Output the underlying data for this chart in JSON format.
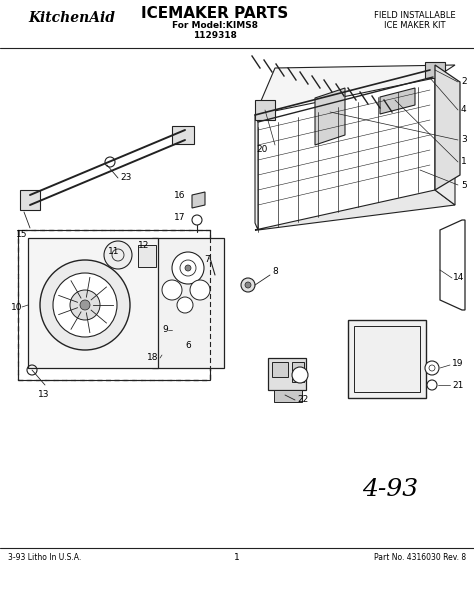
{
  "title": "ICEMAKER PARTS",
  "subtitle1": "For Model:KIMS8",
  "subtitle2": "1129318",
  "brand": "KitchenAid",
  "top_right_line1": "FIELD INSTALLABLE",
  "top_right_line2": "ICE MAKER KIT",
  "bottom_left": "3-93 Litho In U.S.A.",
  "bottom_center": "1",
  "bottom_right": "Part No. 4316030 Rev. 8",
  "stamp": "4-93",
  "bg_color": "#ffffff",
  "text_color": "#111111",
  "line_color": "#222222"
}
